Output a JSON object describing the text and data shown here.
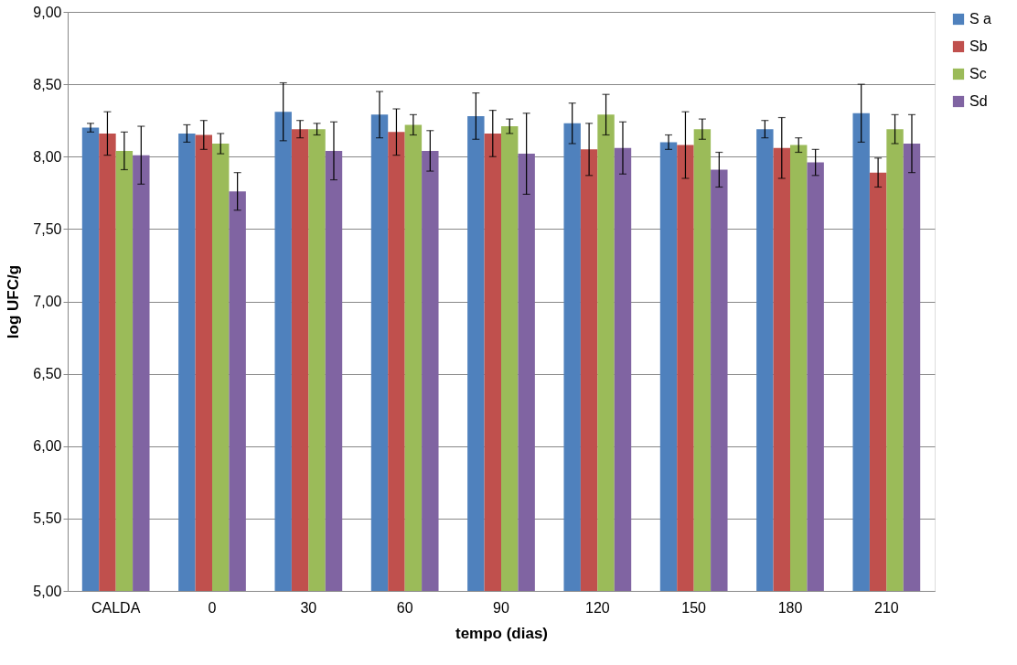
{
  "chart_data": {
    "type": "bar",
    "xlabel": "tempo (dias)",
    "ylabel": "log UFC/g",
    "categories": [
      "CALDA",
      "0",
      "30",
      "60",
      "90",
      "120",
      "150",
      "180",
      "210"
    ],
    "series": [
      {
        "name": "S a",
        "color": "#4f81bd",
        "values": [
          8.2,
          8.16,
          8.31,
          8.29,
          8.28,
          8.23,
          8.1,
          8.19,
          8.3
        ],
        "errors": [
          0.03,
          0.06,
          0.2,
          0.16,
          0.16,
          0.14,
          0.05,
          0.06,
          0.2
        ]
      },
      {
        "name": "Sb",
        "color": "#c0504d",
        "values": [
          8.16,
          8.15,
          8.19,
          8.17,
          8.16,
          8.05,
          8.08,
          8.06,
          7.89
        ],
        "errors": [
          0.15,
          0.1,
          0.06,
          0.16,
          0.16,
          0.18,
          0.23,
          0.21,
          0.1
        ]
      },
      {
        "name": "Sc",
        "color": "#9bbb59",
        "values": [
          8.04,
          8.09,
          8.19,
          8.22,
          8.21,
          8.29,
          8.19,
          8.08,
          8.19
        ],
        "errors": [
          0.13,
          0.07,
          0.04,
          0.07,
          0.05,
          0.14,
          0.07,
          0.05,
          0.1
        ]
      },
      {
        "name": "Sd",
        "color": "#8064a2",
        "values": [
          8.01,
          7.76,
          8.04,
          8.04,
          8.02,
          8.06,
          7.91,
          7.96,
          8.09
        ],
        "errors": [
          0.2,
          0.13,
          0.2,
          0.14,
          0.28,
          0.18,
          0.12,
          0.09,
          0.2
        ]
      }
    ],
    "ylim": [
      5,
      9
    ],
    "yticks": [
      {
        "value": 5,
        "label": "5,00"
      },
      {
        "value": 5.5,
        "label": "5,50"
      },
      {
        "value": 6,
        "label": "6,00"
      },
      {
        "value": 6.5,
        "label": "6,50"
      },
      {
        "value": 7,
        "label": "7,00"
      },
      {
        "value": 7.5,
        "label": "7,50"
      },
      {
        "value": 8,
        "label": "8,00"
      },
      {
        "value": 8.5,
        "label": "8,50"
      },
      {
        "value": 9,
        "label": "9,00"
      }
    ],
    "grid": "y",
    "legend": "right"
  }
}
